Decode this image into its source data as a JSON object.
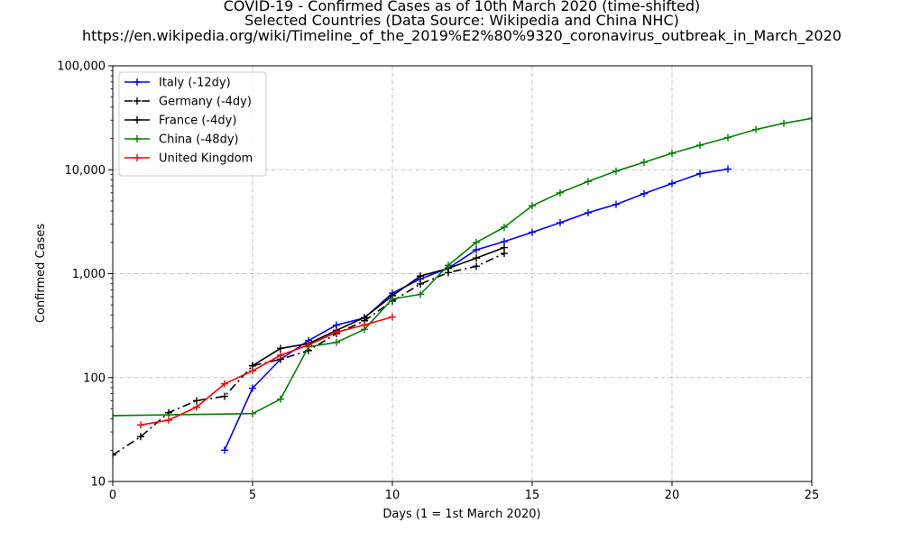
{
  "chart_data": {
    "type": "line",
    "title_lines": [
      "COVID-19 - Confirmed Cases as of 10th March 2020 (time-shifted)",
      "Selected Countries (Data Source: Wikipedia and China NHC)",
      "https://en.wikipedia.org/wiki/Timeline_of_the_2019%E2%80%9320_coronavirus_outbreak_in_March_2020"
    ],
    "xlabel": "Days (1 = 1st March 2020)",
    "ylabel": "Confirmed Cases",
    "xlim": [
      0,
      25
    ],
    "ylim": [
      10,
      100000
    ],
    "yscale": "log",
    "xticks": [
      0,
      5,
      10,
      15,
      20,
      25
    ],
    "xtick_labels": [
      "0",
      "5",
      "10",
      "15",
      "20",
      "25"
    ],
    "yticks": [
      10,
      100,
      1000,
      10000,
      100000
    ],
    "ytick_labels": [
      "10",
      "100",
      "1,000",
      "10,000",
      "100,000"
    ],
    "grid": true,
    "legend_position": "top-left",
    "series": [
      {
        "name": "Italy (-12dy)",
        "color": "#0000ff",
        "style": "solid",
        "x": [
          4,
          5,
          6,
          7,
          8,
          9,
          10,
          11,
          12,
          13,
          14,
          15,
          16,
          17,
          18,
          19,
          20,
          21,
          22
        ],
        "y": [
          20,
          79,
          150,
          227,
          320,
          374,
          650,
          888,
          1128,
          1694,
          2036,
          2502,
          3089,
          3858,
          4636,
          5883,
          7375,
          9172,
          10149
        ]
      },
      {
        "name": "Germany (-4dy)",
        "color": "#000000",
        "style": "dashdot",
        "x": [
          0,
          1,
          2,
          3,
          4,
          5,
          6,
          7,
          8,
          9,
          10,
          11,
          12,
          13,
          14
        ],
        "y": [
          18,
          27,
          46,
          60,
          66,
          130,
          150,
          182,
          265,
          352,
          545,
          795,
          1024,
          1176,
          1565
        ]
      },
      {
        "name": "France (-4dy)",
        "color": "#000000",
        "style": "solid",
        "x": [
          5,
          6,
          7,
          8,
          9,
          10,
          11,
          12,
          13,
          14
        ],
        "y": [
          130,
          191,
          212,
          285,
          377,
          613,
          949,
          1126,
          1412,
          1784
        ]
      },
      {
        "name": "China (-48dy)",
        "color": "#008000",
        "style": "solid",
        "x": [
          0,
          5,
          6,
          7,
          8,
          9,
          10,
          11,
          12,
          13,
          14,
          15,
          16,
          17,
          18,
          19,
          20,
          21,
          22,
          23,
          24,
          25
        ],
        "y": [
          43,
          45,
          62,
          198,
          218,
          291,
          571,
          632,
          1203,
          2000,
          2800,
          4500,
          6000,
          7700,
          9700,
          11800,
          14400,
          17200,
          20400,
          24400,
          28000,
          31200
        ]
      },
      {
        "name": "United Kingdom",
        "color": "#ff0000",
        "style": "solid",
        "x": [
          1,
          2,
          3,
          4,
          5,
          6,
          7,
          8,
          9,
          10
        ],
        "y": [
          35,
          39,
          52,
          87,
          116,
          164,
          206,
          273,
          321,
          383
        ]
      }
    ]
  }
}
